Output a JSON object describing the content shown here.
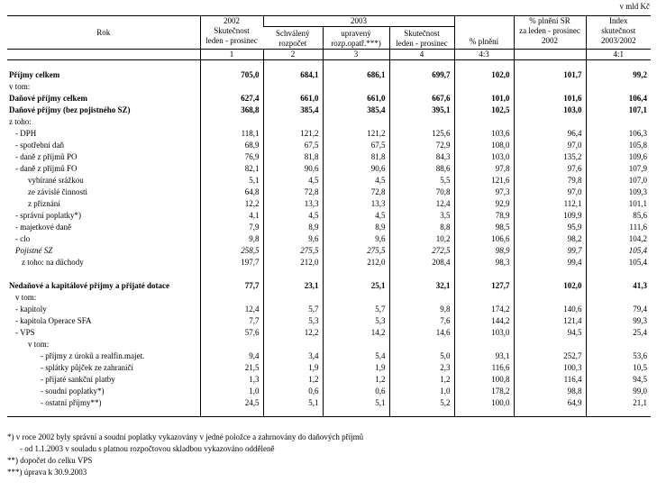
{
  "unit": "v mld Kč",
  "header": {
    "rok": "Rok",
    "year_2003": "2003",
    "columns": [
      {
        "lines": [
          "2002",
          "Skutečnost",
          "leden - prosinec"
        ],
        "number": "1"
      },
      {
        "lines": [
          "Schválený",
          "rozpočet"
        ],
        "number": "2"
      },
      {
        "lines": [
          "upravený",
          "rozp.opatř.***)"
        ],
        "number": "3"
      },
      {
        "lines": [
          "Skutečnost",
          "leden - prosinec"
        ],
        "number": "4"
      },
      {
        "lines": [
          "% plnění"
        ],
        "number": "4:3"
      },
      {
        "lines": [
          "% plnění SR",
          "za leden - prosinec",
          "2002"
        ]
      },
      {
        "lines": [
          "Index",
          "skutečnost",
          "2003/2002"
        ],
        "number": "4:1"
      }
    ]
  },
  "sections": [
    {
      "rows": [
        {
          "label": "Příjmy celkem",
          "style": "bold",
          "indent": 0,
          "values": [
            "705,0",
            "684,1",
            "686,1",
            "699,7",
            "102,0",
            "101,7",
            "99,2"
          ]
        },
        {
          "label": "v tom:",
          "indent": 0
        },
        {
          "label": "Daňové příjmy celkem",
          "style": "bold",
          "indent": 0,
          "values": [
            "627,4",
            "661,0",
            "661,0",
            "667,6",
            "101,0",
            "101,6",
            "106,4"
          ]
        },
        {
          "label": "Daňové příjmy (bez pojistného SZ)",
          "style": "bold",
          "indent": 0,
          "values": [
            "368,8",
            "385,4",
            "385,4",
            "395,1",
            "102,5",
            "103,0",
            "107,1"
          ]
        },
        {
          "label": "z toho:",
          "indent": 0
        },
        {
          "label": "- DPH",
          "indent": 1,
          "values": [
            "118,1",
            "121,2",
            "121,2",
            "125,6",
            "103,6",
            "96,4",
            "106,3"
          ]
        },
        {
          "label": "- spotřební daň",
          "indent": 1,
          "values": [
            "68,9",
            "67,5",
            "67,5",
            "72,9",
            "108,0",
            "97,0",
            "105,8"
          ]
        },
        {
          "label": "- daně z příjmů PO",
          "indent": 1,
          "values": [
            "76,9",
            "81,8",
            "81,8",
            "84,3",
            "103,0",
            "135,2",
            "109,6"
          ]
        },
        {
          "label": "- daně z příjmů FO",
          "indent": 1,
          "values": [
            "82,1",
            "90,6",
            "90,6",
            "88,6",
            "97,8",
            "97,6",
            "107,9"
          ]
        },
        {
          "label": "vybírané srážkou",
          "indent": 3,
          "values": [
            "5,1",
            "4,5",
            "4,5",
            "5,5",
            "121,6",
            "79,8",
            "107,0"
          ]
        },
        {
          "label": "ze závislé činnosti",
          "indent": 3,
          "values": [
            "64,8",
            "72,8",
            "72,8",
            "70,8",
            "97,3",
            "97,0",
            "109,3"
          ]
        },
        {
          "label": "z přiznání",
          "indent": 3,
          "values": [
            "12,2",
            "13,3",
            "13,3",
            "12,4",
            "92,9",
            "112,1",
            "101,1"
          ]
        },
        {
          "label": "- správní poplatky*)",
          "indent": 1,
          "values": [
            "4,1",
            "4,5",
            "4,5",
            "3,5",
            "78,9",
            "109,9",
            "85,6"
          ]
        },
        {
          "label": "- majetkové daně",
          "indent": 1,
          "values": [
            "7,9",
            "8,9",
            "8,9",
            "8,8",
            "98,5",
            "95,9",
            "111,6"
          ]
        },
        {
          "label": "- clo",
          "indent": 1,
          "values": [
            "9,8",
            "9,6",
            "9,6",
            "10,2",
            "106,6",
            "98,2",
            "104,2"
          ]
        },
        {
          "label": "Pojistné SZ",
          "style": "italic",
          "indent": 1,
          "values": [
            "258,5",
            "275,5",
            "275,5",
            "272,5",
            "98,9",
            "99,7",
            "105,4"
          ]
        },
        {
          "label": "z toho: na důchody",
          "indent": 2,
          "values": [
            "197,7",
            "212,0",
            "212,0",
            "208,4",
            "98,3",
            "99,4",
            "105,4"
          ]
        }
      ]
    },
    {
      "rows": [
        {
          "label": "Nedaňové a kapitálové příjmy a přijaté dotace",
          "style": "bold",
          "indent": 0,
          "values": [
            "77,7",
            "23,1",
            "25,1",
            "32,1",
            "127,7",
            "102,0",
            "41,3"
          ]
        },
        {
          "label": "v tom:",
          "indent": 1
        },
        {
          "label": "- kapitoly",
          "indent": 1,
          "values": [
            "12,4",
            "5,7",
            "5,7",
            "9,8",
            "174,2",
            "140,6",
            "79,4"
          ]
        },
        {
          "label": "- kapitola Operace SFA",
          "indent": 1,
          "values": [
            "7,7",
            "5,3",
            "5,3",
            "7,6",
            "144,2",
            "121,4",
            "99,3"
          ]
        },
        {
          "label": "- VPS",
          "indent": 1,
          "values": [
            "57,6",
            "12,2",
            "14,2",
            "14,6",
            "103,0",
            "94,5",
            "25,4"
          ]
        },
        {
          "label": "v tom:",
          "indent": 3
        },
        {
          "label": "- příjmy z úroků a realfin.majet.",
          "indent": 5,
          "values": [
            "9,4",
            "3,4",
            "5,4",
            "5,0",
            "93,1",
            "252,7",
            "53,6"
          ]
        },
        {
          "label": "- splátky půjček ze zahraničí",
          "indent": 5,
          "values": [
            "21,5",
            "1,9",
            "1,9",
            "2,3",
            "116,6",
            "100,3",
            "10,5"
          ]
        },
        {
          "label": "- přijaté sankční platby",
          "indent": 5,
          "values": [
            "1,3",
            "1,2",
            "1,2",
            "1,2",
            "100,8",
            "116,4",
            "94,5"
          ]
        },
        {
          "label": "- soudní poplatky*)",
          "indent": 5,
          "values": [
            "1,0",
            "0,6",
            "0,6",
            "1,0",
            "178,2",
            "98,8",
            "99,0"
          ]
        },
        {
          "label": "- ostatní příjmy**)",
          "indent": 5,
          "values": [
            "24,5",
            "5,1",
            "5,1",
            "5,2",
            "100,0",
            "64,9",
            "21,1"
          ]
        }
      ]
    }
  ],
  "footnotes": [
    "*) v roce 2002 byly správní a soudní poplatky vykazovány v jedné položce a zahrnovány do daňových příjmů",
    "- od 1.1.2003 v souladu s platnou rozpočtovou skladbou vykazováno odděleně",
    "**) dopočet do celku VPS",
    "***) úprava k 30.9.2003"
  ]
}
